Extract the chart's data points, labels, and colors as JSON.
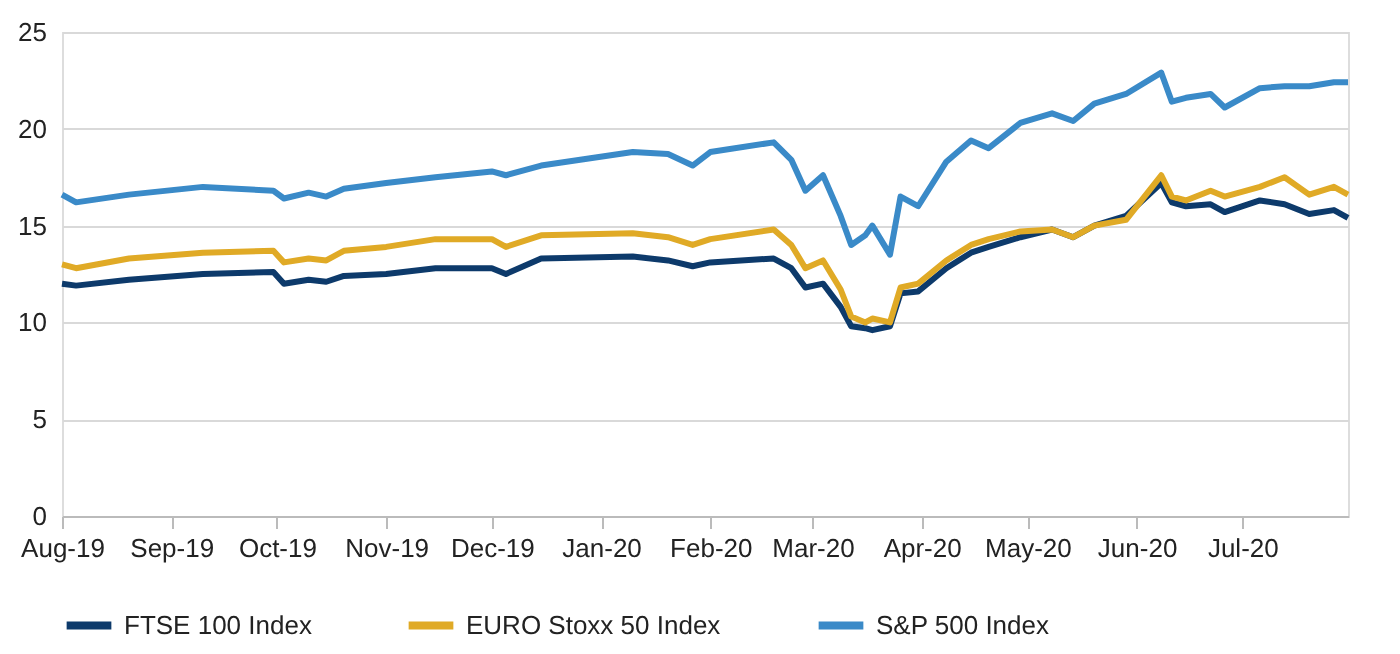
{
  "chart_data": {
    "type": "line",
    "x": [
      "2019-08-01",
      "2019-08-05",
      "2019-08-20",
      "2019-09-10",
      "2019-09-30",
      "2019-10-03",
      "2019-10-10",
      "2019-10-15",
      "2019-10-20",
      "2019-11-01",
      "2019-11-15",
      "2019-12-01",
      "2019-12-05",
      "2019-12-15",
      "2020-01-10",
      "2020-01-20",
      "2020-01-27",
      "2020-02-01",
      "2020-02-19",
      "2020-02-24",
      "2020-02-28",
      "2020-03-04",
      "2020-03-09",
      "2020-03-12",
      "2020-03-16",
      "2020-03-18",
      "2020-03-23",
      "2020-03-26",
      "2020-03-31",
      "2020-04-08",
      "2020-04-15",
      "2020-04-20",
      "2020-04-29",
      "2020-05-08",
      "2020-05-14",
      "2020-05-20",
      "2020-05-29",
      "2020-06-08",
      "2020-06-11",
      "2020-06-15",
      "2020-06-22",
      "2020-06-26",
      "2020-07-06",
      "2020-07-13",
      "2020-07-20",
      "2020-07-27",
      "2020-07-31"
    ],
    "series": [
      {
        "name": "FTSE 100 Index",
        "color": "#0d3a6b",
        "values": [
          12.0,
          11.9,
          12.2,
          12.5,
          12.6,
          12.0,
          12.2,
          12.1,
          12.4,
          12.5,
          12.8,
          12.8,
          12.5,
          13.3,
          13.4,
          13.2,
          12.9,
          13.1,
          13.3,
          12.8,
          11.8,
          12.0,
          10.8,
          9.8,
          9.7,
          9.6,
          9.8,
          11.5,
          11.6,
          12.8,
          13.6,
          13.9,
          14.4,
          14.8,
          14.4,
          15.0,
          15.5,
          17.2,
          16.2,
          16.0,
          16.1,
          15.7,
          16.3,
          16.1,
          15.6,
          15.8,
          15.4
        ]
      },
      {
        "name": "EURO Stoxx 50 Index",
        "color": "#e0aa26",
        "values": [
          13.0,
          12.8,
          13.3,
          13.6,
          13.7,
          13.1,
          13.3,
          13.2,
          13.7,
          13.9,
          14.3,
          14.3,
          13.9,
          14.5,
          14.6,
          14.4,
          14.0,
          14.3,
          14.8,
          14.0,
          12.8,
          13.2,
          11.7,
          10.3,
          10.0,
          10.2,
          10.0,
          11.8,
          12.0,
          13.2,
          14.0,
          14.3,
          14.7,
          14.8,
          14.4,
          15.0,
          15.3,
          17.6,
          16.5,
          16.3,
          16.8,
          16.5,
          17.0,
          17.5,
          16.6,
          17.0,
          16.6
        ]
      },
      {
        "name": "S&P 500 Index",
        "color": "#3a8ac8",
        "values": [
          16.6,
          16.2,
          16.6,
          17.0,
          16.8,
          16.4,
          16.7,
          16.5,
          16.9,
          17.2,
          17.5,
          17.8,
          17.6,
          18.1,
          18.8,
          18.7,
          18.1,
          18.8,
          19.3,
          18.4,
          16.8,
          17.6,
          15.5,
          14.0,
          14.5,
          15.0,
          13.5,
          16.5,
          16.0,
          18.3,
          19.4,
          19.0,
          20.3,
          20.8,
          20.4,
          21.3,
          21.8,
          22.9,
          21.4,
          21.6,
          21.8,
          21.1,
          22.1,
          22.2,
          22.2,
          22.4,
          22.4
        ]
      }
    ],
    "xlim": [
      "2019-08-01",
      "2020-07-31"
    ],
    "xticks": [
      {
        "value": "2019-08-01",
        "label": "Aug-19"
      },
      {
        "value": "2019-09-01",
        "label": "Sep-19"
      },
      {
        "value": "2019-10-01",
        "label": "Oct-19"
      },
      {
        "value": "2019-11-01",
        "label": "Nov-19"
      },
      {
        "value": "2019-12-01",
        "label": "Dec-19"
      },
      {
        "value": "2020-01-01",
        "label": "Jan-20"
      },
      {
        "value": "2020-02-01",
        "label": "Feb-20"
      },
      {
        "value": "2020-03-01",
        "label": "Mar-20"
      },
      {
        "value": "2020-04-01",
        "label": "Apr-20"
      },
      {
        "value": "2020-05-01",
        "label": "May-20"
      },
      {
        "value": "2020-06-01",
        "label": "Jun-20"
      },
      {
        "value": "2020-07-01",
        "label": "Jul-20"
      }
    ],
    "ylim": [
      0,
      25
    ],
    "yticks": [
      0,
      5,
      10,
      15,
      20,
      25
    ],
    "grid": "y",
    "legend": "bottom",
    "line_style": "solid",
    "marker": "none"
  }
}
